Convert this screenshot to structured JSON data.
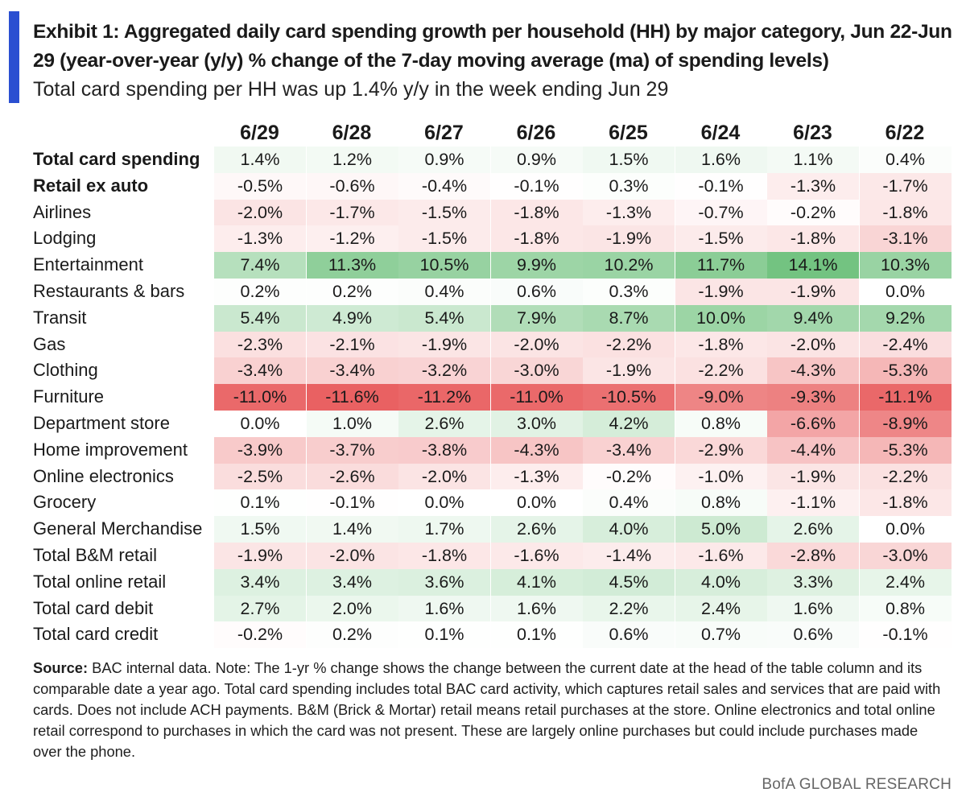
{
  "header": {
    "title": "Exhibit 1: Aggregated daily card spending growth per household (HH) by major category, Jun 22-Jun 29 (year-over-year (y/y) % change of the 7-day moving average (ma) of spending levels)",
    "subtitle": "Total card spending per HH was up 1.4% y/y in the week ending Jun 29"
  },
  "colors": {
    "accent": "#2a4fd1",
    "positive": "#6cc07a",
    "negative": "#e8595a",
    "neutral": "#ffffff"
  },
  "chart_data": {
    "type": "table",
    "title": "Exhibit 1: Aggregated daily card spending growth per household (HH) by major category, Jun 22-Jun 29 (year-over-year (y/y) % change of the 7-day moving average (ma) of spending levels)",
    "columns": [
      "6/29",
      "6/28",
      "6/27",
      "6/26",
      "6/25",
      "6/24",
      "6/23",
      "6/22"
    ],
    "rows": [
      {
        "label": "Total card spending",
        "bold": true,
        "cells": [
          "1.4%",
          "1.2%",
          "0.9%",
          "0.9%",
          "1.5%",
          "1.6%",
          "1.1%",
          "0.4%"
        ],
        "values": [
          1.4,
          1.2,
          0.9,
          0.9,
          1.5,
          1.6,
          1.1,
          0.4
        ]
      },
      {
        "label": "Retail ex auto",
        "bold": true,
        "cells": [
          "-0.5%",
          "-0.6%",
          "-0.4%",
          "-0.1%",
          "0.3%",
          "-0.1%",
          "-1.3%",
          "-1.7%"
        ],
        "values": [
          -0.5,
          -0.6,
          -0.4,
          -0.1,
          0.3,
          -0.1,
          -1.3,
          -1.7
        ]
      },
      {
        "label": "Airlines",
        "bold": false,
        "cells": [
          "-2.0%",
          "-1.7%",
          "-1.5%",
          "-1.8%",
          "-1.3%",
          "-0.7%",
          "-0.2%",
          "-1.8%"
        ],
        "values": [
          -2.0,
          -1.7,
          -1.5,
          -1.8,
          -1.3,
          -0.7,
          -0.2,
          -1.8
        ]
      },
      {
        "label": "Lodging",
        "bold": false,
        "cells": [
          "-1.3%",
          "-1.2%",
          "-1.5%",
          "-1.8%",
          "-1.9%",
          "-1.5%",
          "-1.8%",
          "-3.1%"
        ],
        "values": [
          -1.3,
          -1.2,
          -1.5,
          -1.8,
          -1.9,
          -1.5,
          -1.8,
          -3.1
        ]
      },
      {
        "label": "Entertainment",
        "bold": false,
        "cells": [
          "7.4%",
          "11.3%",
          "10.5%",
          "9.9%",
          "10.2%",
          "11.7%",
          "14.1%",
          "10.3%"
        ],
        "values": [
          7.4,
          11.3,
          10.5,
          9.9,
          10.2,
          11.7,
          14.1,
          10.3
        ]
      },
      {
        "label": "Restaurants & bars",
        "bold": false,
        "cells": [
          "0.2%",
          "0.2%",
          "0.4%",
          "0.6%",
          "0.3%",
          "-1.9%",
          "-1.9%",
          "0.0%"
        ],
        "values": [
          0.2,
          0.2,
          0.4,
          0.6,
          0.3,
          -1.9,
          -1.9,
          0.0
        ]
      },
      {
        "label": "Transit",
        "bold": false,
        "cells": [
          "5.4%",
          "4.9%",
          "5.4%",
          "7.9%",
          "8.7%",
          "10.0%",
          "9.4%",
          "9.2%"
        ],
        "values": [
          5.4,
          4.9,
          5.4,
          7.9,
          8.7,
          10.0,
          9.4,
          9.2
        ]
      },
      {
        "label": "Gas",
        "bold": false,
        "cells": [
          "-2.3%",
          "-2.1%",
          "-1.9%",
          "-2.0%",
          "-2.2%",
          "-1.8%",
          "-2.0%",
          "-2.4%"
        ],
        "values": [
          -2.3,
          -2.1,
          -1.9,
          -2.0,
          -2.2,
          -1.8,
          -2.0,
          -2.4
        ]
      },
      {
        "label": "Clothing",
        "bold": false,
        "cells": [
          "-3.4%",
          "-3.4%",
          "-3.2%",
          "-3.0%",
          "-1.9%",
          "-2.2%",
          "-4.3%",
          "-5.3%"
        ],
        "values": [
          -3.4,
          -3.4,
          -3.2,
          -3.0,
          -1.9,
          -2.2,
          -4.3,
          -5.3
        ]
      },
      {
        "label": "Furniture",
        "bold": false,
        "cells": [
          "-11.0%",
          "-11.6%",
          "-11.2%",
          "-11.0%",
          "-10.5%",
          "-9.0%",
          "-9.3%",
          "-11.1%"
        ],
        "values": [
          -11.0,
          -11.6,
          -11.2,
          -11.0,
          -10.5,
          -9.0,
          -9.3,
          -11.1
        ]
      },
      {
        "label": "Department store",
        "bold": false,
        "cells": [
          "0.0%",
          "1.0%",
          "2.6%",
          "3.0%",
          "4.2%",
          "0.8%",
          "-6.6%",
          "-8.9%"
        ],
        "values": [
          0.0,
          1.0,
          2.6,
          3.0,
          4.2,
          0.8,
          -6.6,
          -8.9
        ]
      },
      {
        "label": "Home improvement",
        "bold": false,
        "cells": [
          "-3.9%",
          "-3.7%",
          "-3.8%",
          "-4.3%",
          "-3.4%",
          "-2.9%",
          "-4.4%",
          "-5.3%"
        ],
        "values": [
          -3.9,
          -3.7,
          -3.8,
          -4.3,
          -3.4,
          -2.9,
          -4.4,
          -5.3
        ]
      },
      {
        "label": "Online electronics",
        "bold": false,
        "cells": [
          "-2.5%",
          "-2.6%",
          "-2.0%",
          "-1.3%",
          "-0.2%",
          "-1.0%",
          "-1.9%",
          "-2.2%"
        ],
        "values": [
          -2.5,
          -2.6,
          -2.0,
          -1.3,
          -0.2,
          -1.0,
          -1.9,
          -2.2
        ]
      },
      {
        "label": "Grocery",
        "bold": false,
        "cells": [
          "0.1%",
          "-0.1%",
          "0.0%",
          "0.0%",
          "0.4%",
          "0.8%",
          "-1.1%",
          "-1.8%"
        ],
        "values": [
          0.1,
          -0.1,
          0.0,
          0.0,
          0.4,
          0.8,
          -1.1,
          -1.8
        ]
      },
      {
        "label": "General Merchandise",
        "bold": false,
        "cells": [
          "1.5%",
          "1.4%",
          "1.7%",
          "2.6%",
          "4.0%",
          "5.0%",
          "2.6%",
          "0.0%"
        ],
        "values": [
          1.5,
          1.4,
          1.7,
          2.6,
          4.0,
          5.0,
          2.6,
          0.0
        ]
      },
      {
        "label": "Total B&M retail",
        "bold": false,
        "cells": [
          "-1.9%",
          "-2.0%",
          "-1.8%",
          "-1.6%",
          "-1.4%",
          "-1.6%",
          "-2.8%",
          "-3.0%"
        ],
        "values": [
          -1.9,
          -2.0,
          -1.8,
          -1.6,
          -1.4,
          -1.6,
          -2.8,
          -3.0
        ]
      },
      {
        "label": "Total online retail",
        "bold": false,
        "cells": [
          "3.4%",
          "3.4%",
          "3.6%",
          "4.1%",
          "4.5%",
          "4.0%",
          "3.3%",
          "2.4%"
        ],
        "values": [
          3.4,
          3.4,
          3.6,
          4.1,
          4.5,
          4.0,
          3.3,
          2.4
        ]
      },
      {
        "label": "Total card debit",
        "bold": false,
        "cells": [
          "2.7%",
          "2.0%",
          "1.6%",
          "1.6%",
          "2.2%",
          "2.4%",
          "1.6%",
          "0.8%"
        ],
        "values": [
          2.7,
          2.0,
          1.6,
          1.6,
          2.2,
          2.4,
          1.6,
          0.8
        ]
      },
      {
        "label": "Total card credit",
        "bold": false,
        "cells": [
          "-0.2%",
          "0.2%",
          "0.1%",
          "0.1%",
          "0.6%",
          "0.7%",
          "0.6%",
          "-0.1%"
        ],
        "values": [
          -0.2,
          0.2,
          0.1,
          0.1,
          0.6,
          0.7,
          0.6,
          -0.1
        ]
      }
    ]
  },
  "footnote": {
    "source_label": "Source:",
    "text": " BAC internal data. Note: The 1-yr % change shows the change between the current date at the head of the table column and its comparable date a year ago. Total card spending includes total BAC card activity, which captures retail sales and services that are paid with cards. Does not include ACH payments. B&M (Brick & Mortar) retail means retail purchases at the store. Online electronics and total online retail correspond to purchases in which the card was not present. These are largely online purchases but could include purchases made over the phone."
  },
  "brand": "BofA GLOBAL RESEARCH"
}
